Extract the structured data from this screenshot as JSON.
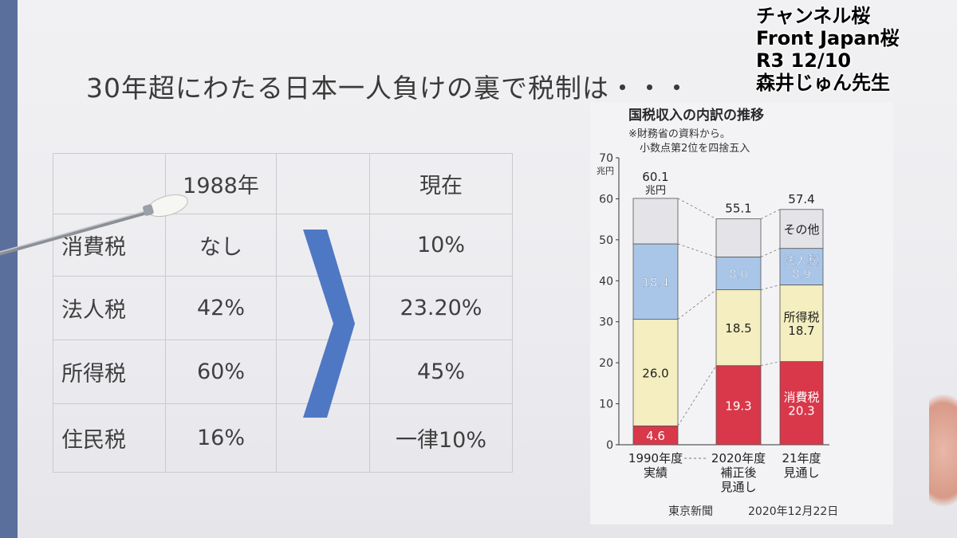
{
  "headline": "30年超にわたる日本一人負けの裏で税制は・・・",
  "overlay": [
    "チャンネル桜",
    "Front Japan桜",
    "R3 12/10",
    "森井じゅん先生"
  ],
  "table": {
    "headers": [
      "",
      "1988年",
      "",
      "現在"
    ],
    "rows": [
      {
        "label": "消費税",
        "then": "なし",
        "now": "10%"
      },
      {
        "label": "法人税",
        "then": "42%",
        "now": "23.20%"
      },
      {
        "label": "所得税",
        "then": "60%",
        "now": "45%"
      },
      {
        "label": "住民税",
        "then": "16%",
        "now": "一律10%"
      }
    ]
  },
  "chart_data": {
    "type": "bar",
    "stacked": true,
    "title": "国税収入の内訳の推移",
    "notes": [
      "※財務省の資料から。",
      "小数点第2位を四捨五入"
    ],
    "unit": "兆円",
    "ylim": [
      0,
      70
    ],
    "yticks": [
      0,
      10,
      20,
      30,
      40,
      50,
      60,
      70
    ],
    "categories": [
      [
        "1990年度",
        "実績"
      ],
      [
        "2020年度",
        "補正後",
        "見通し"
      ],
      [
        "21年度",
        "見通し"
      ]
    ],
    "totals": [
      "60.1",
      "55.1",
      "57.4"
    ],
    "total_unit_label": "兆円",
    "series": [
      {
        "name": "消費税",
        "values": [
          4.6,
          19.3,
          20.3
        ],
        "color": "#d8384a"
      },
      {
        "name": "所得税",
        "values": [
          26.0,
          18.5,
          18.7
        ],
        "color": "#f4eec0"
      },
      {
        "name": "法人税",
        "values": [
          18.4,
          8.0,
          8.9
        ],
        "color": "#a9c6e8"
      },
      {
        "name": "その他",
        "values": [
          11.1,
          9.3,
          9.5
        ],
        "color": "#e3e3e8"
      }
    ],
    "segment_labels": [
      [
        "4.6",
        "26.0",
        "18.4",
        ""
      ],
      [
        "19.3",
        "18.5",
        "8.0",
        ""
      ],
      [
        "消費税|20.3",
        "所得税|18.7",
        "法人税|8.9",
        "その他"
      ]
    ],
    "source": "東京新聞",
    "date": "2020年12月22日"
  }
}
